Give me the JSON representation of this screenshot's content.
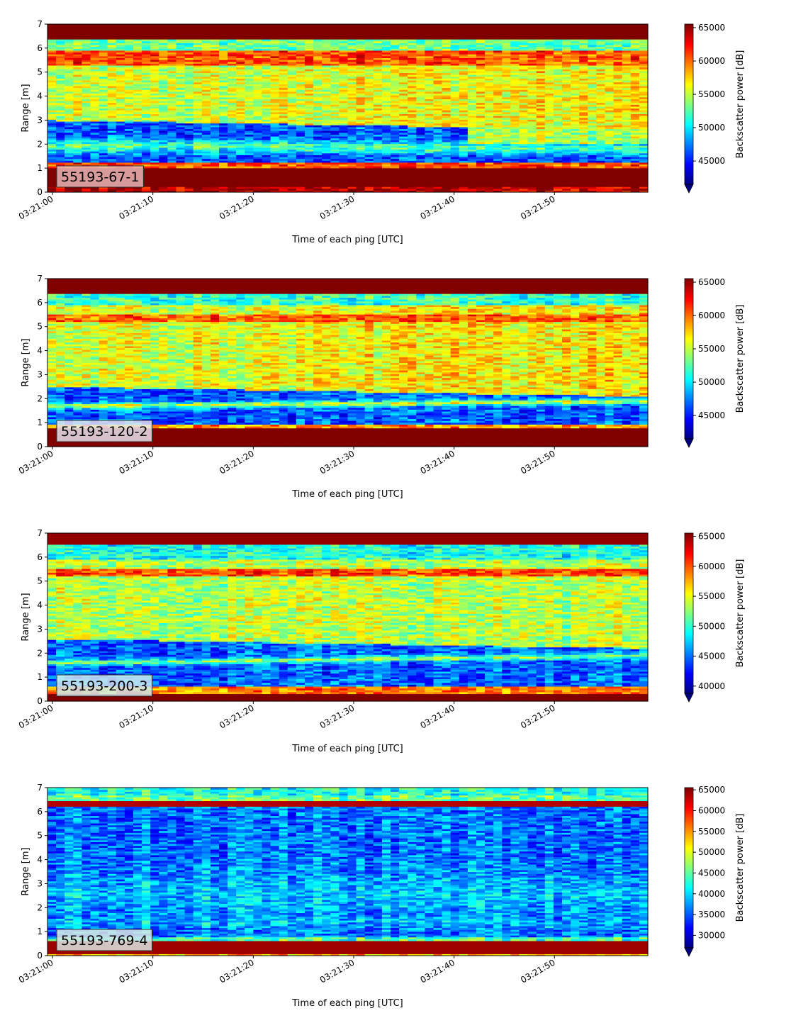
{
  "chart_data": [
    {
      "type": "heatmap",
      "panel_label": "55193-67-1",
      "xlabel": "Time of each ping [UTC]",
      "ylabel": "Range [m]",
      "colorbar_label": "Backscatter power [dB]",
      "x_ticks": [
        "03:21:00",
        "03:21:10",
        "03:21:20",
        "03:21:30",
        "03:21:40",
        "03:21:50"
      ],
      "y_ticks": [
        "0",
        "1",
        "2",
        "3",
        "4",
        "5",
        "6",
        "7"
      ],
      "ylim": [
        0,
        7
      ],
      "x_range_seconds": [
        -0.5,
        59.3
      ],
      "colorbar_ticks": [
        "45000",
        "50000",
        "55000",
        "60000",
        "65000"
      ],
      "colorbar_range": [
        41500,
        65535
      ],
      "colormap": "jet",
      "colorbar_extend": "min",
      "label_box_color": "#e8b5b5"
    },
    {
      "type": "heatmap",
      "panel_label": "55193-120-2",
      "xlabel": "Time of each ping [UTC]",
      "ylabel": "Range [m]",
      "colorbar_label": "Backscatter power [dB]",
      "x_ticks": [
        "03:21:00",
        "03:21:10",
        "03:21:20",
        "03:21:30",
        "03:21:40",
        "03:21:50"
      ],
      "y_ticks": [
        "0",
        "1",
        "2",
        "3",
        "4",
        "5",
        "6",
        "7"
      ],
      "ylim": [
        0,
        7
      ],
      "x_range_seconds": [
        -0.5,
        59.3
      ],
      "colorbar_ticks": [
        "45000",
        "50000",
        "55000",
        "60000",
        "65000"
      ],
      "colorbar_range": [
        41500,
        65535
      ],
      "colormap": "jet",
      "colorbar_extend": "min",
      "label_box_color": "#e4e4ee"
    },
    {
      "type": "heatmap",
      "panel_label": "55193-200-3",
      "xlabel": "Time of each ping [UTC]",
      "ylabel": "Range [m]",
      "colorbar_label": "Backscatter power [dB]",
      "x_ticks": [
        "03:21:00",
        "03:21:10",
        "03:21:20",
        "03:21:30",
        "03:21:40",
        "03:21:50"
      ],
      "y_ticks": [
        "0",
        "1",
        "2",
        "3",
        "4",
        "5",
        "6",
        "7"
      ],
      "ylim": [
        0,
        7
      ],
      "x_range_seconds": [
        -0.5,
        59.3
      ],
      "colorbar_ticks": [
        "40000",
        "45000",
        "50000",
        "55000",
        "60000",
        "65000"
      ],
      "colorbar_range": [
        38800,
        65535
      ],
      "colormap": "jet",
      "colorbar_extend": "min",
      "label_box_color": "#cfe9ee"
    },
    {
      "type": "heatmap",
      "panel_label": "55193-769-4",
      "xlabel": "Time of each ping [UTC]",
      "ylabel": "Range [m]",
      "colorbar_label": "Backscatter power [dB]",
      "x_ticks": [
        "03:21:00",
        "03:21:10",
        "03:21:20",
        "03:21:30",
        "03:21:40",
        "03:21:50"
      ],
      "y_ticks": [
        "0",
        "1",
        "2",
        "3",
        "4",
        "5",
        "6",
        "7"
      ],
      "ylim": [
        0,
        7
      ],
      "x_range_seconds": [
        -0.5,
        59.3
      ],
      "colorbar_ticks": [
        "30000",
        "35000",
        "40000",
        "45000",
        "50000",
        "55000",
        "60000",
        "65000"
      ],
      "colorbar_range": [
        27000,
        65535
      ],
      "colormap": "jet",
      "colorbar_extend": "min",
      "label_box_color": "#dbe6e4"
    }
  ]
}
